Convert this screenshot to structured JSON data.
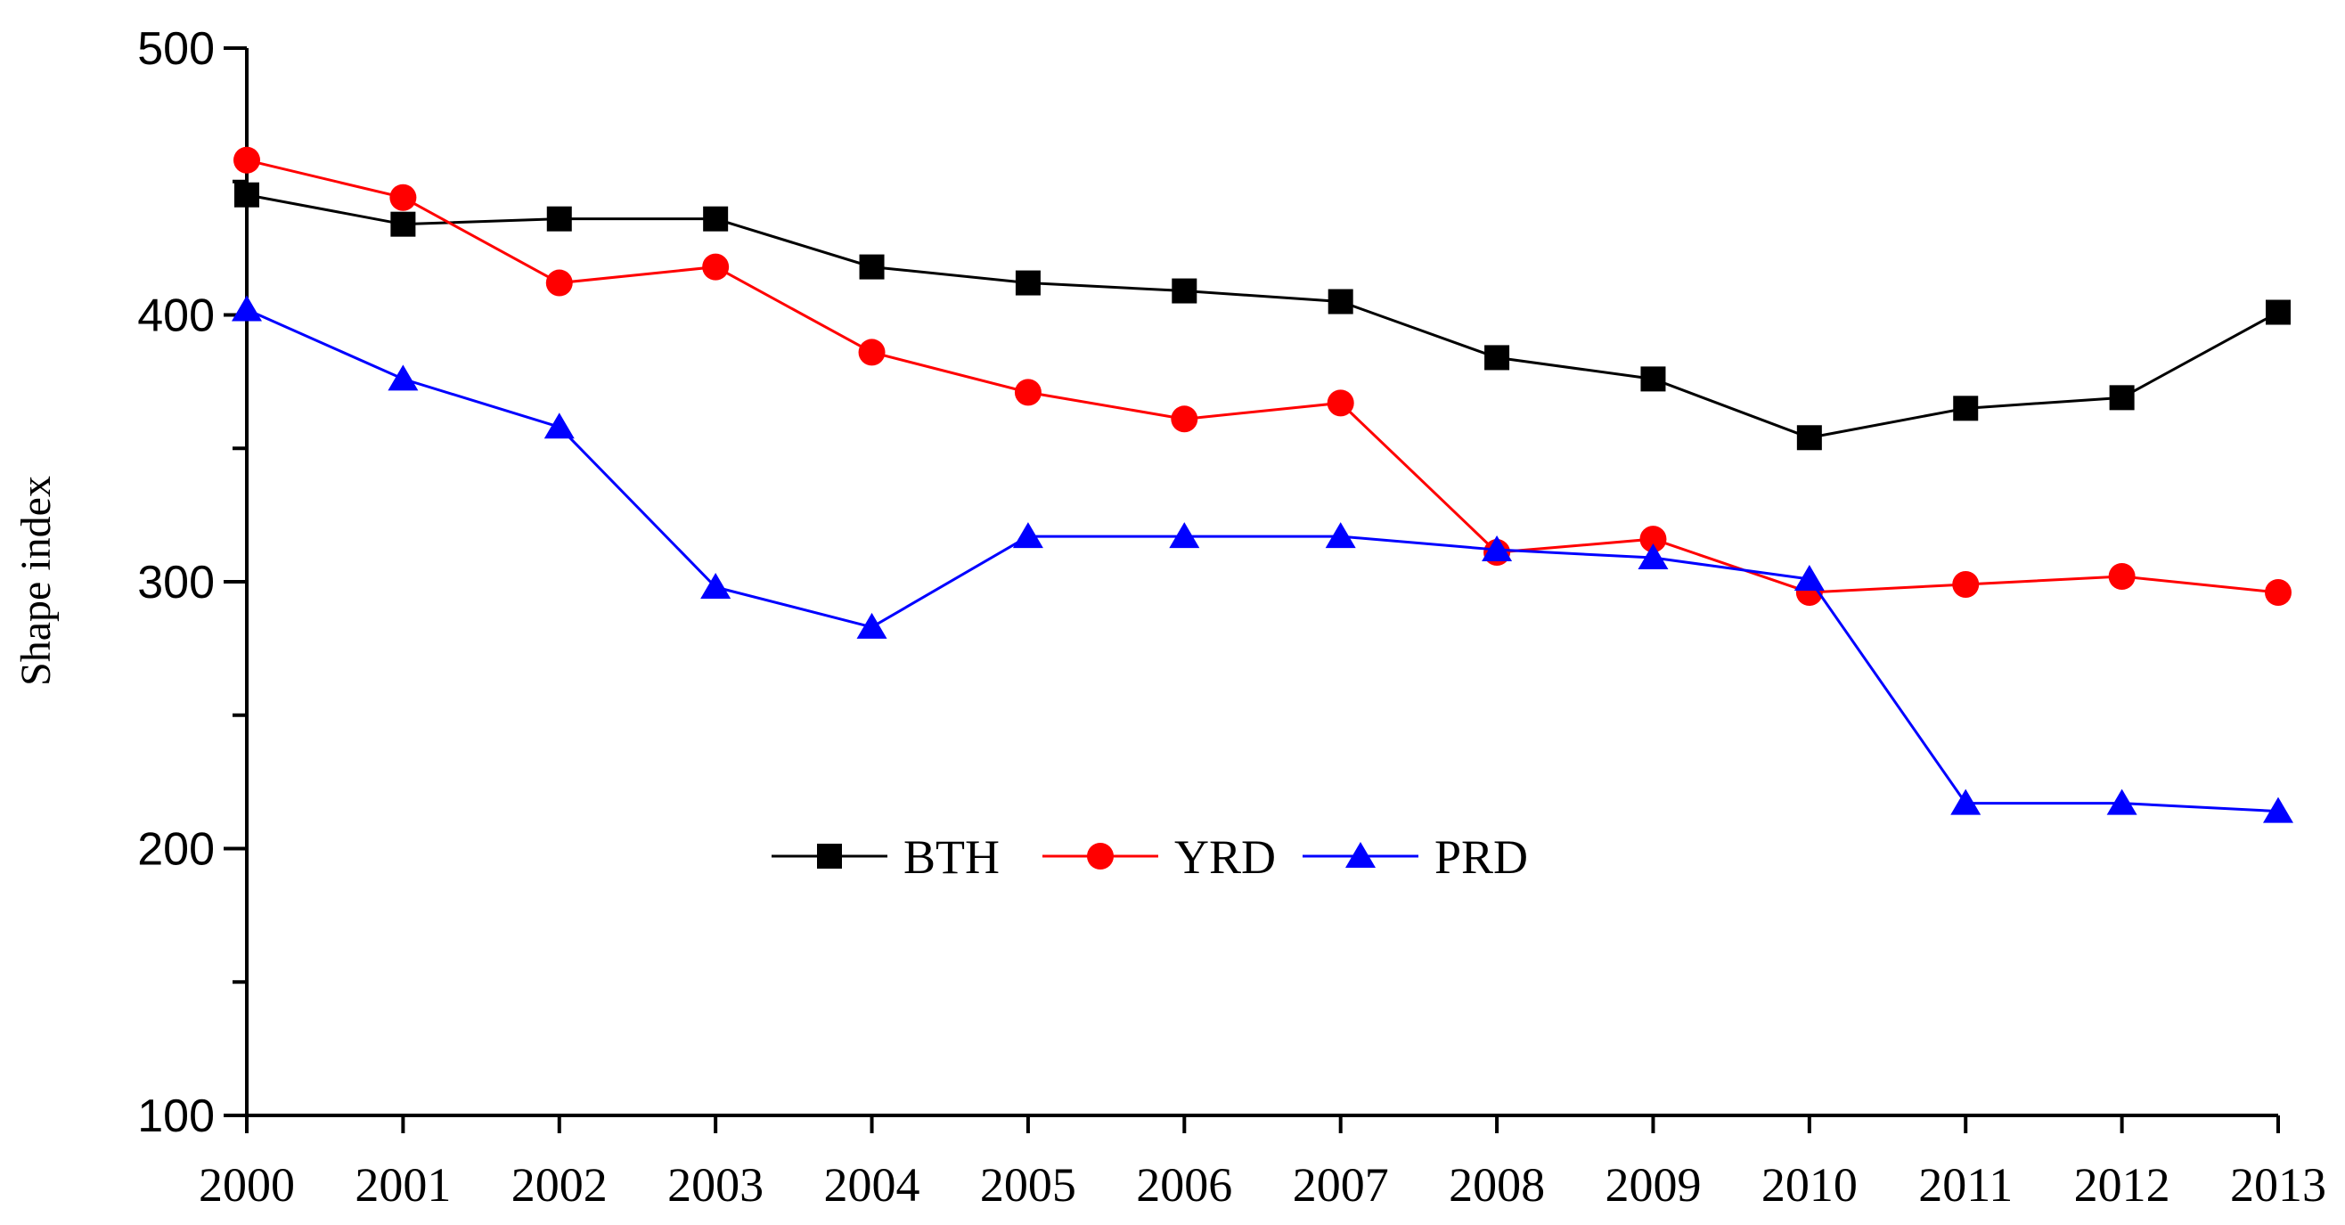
{
  "chart_data": {
    "type": "line",
    "title": "",
    "xlabel": "",
    "ylabel": "Shape index",
    "categories": [
      "2000",
      "2001",
      "2002",
      "2003",
      "2004",
      "2005",
      "2006",
      "2007",
      "2008",
      "2009",
      "2010",
      "2011",
      "2012",
      "2013"
    ],
    "ylim": [
      100,
      500
    ],
    "yticks": [
      100,
      200,
      300,
      400,
      500
    ],
    "grid": false,
    "legend_position": "center",
    "series": [
      {
        "name": "BTH",
        "color": "#000000",
        "marker": "square",
        "values": [
          445,
          434,
          436,
          436,
          418,
          412,
          409,
          405,
          384,
          376,
          354,
          365,
          369,
          401
        ]
      },
      {
        "name": "YRD",
        "color": "#ff0000",
        "marker": "circle",
        "values": [
          458,
          444,
          412,
          418,
          386,
          371,
          361,
          367,
          311,
          316,
          296,
          299,
          302,
          296
        ]
      },
      {
        "name": "PRD",
        "color": "#0000ff",
        "marker": "triangle",
        "values": [
          402,
          376,
          358,
          298,
          283,
          317,
          317,
          317,
          312,
          309,
          301,
          217,
          217,
          214
        ]
      }
    ]
  }
}
